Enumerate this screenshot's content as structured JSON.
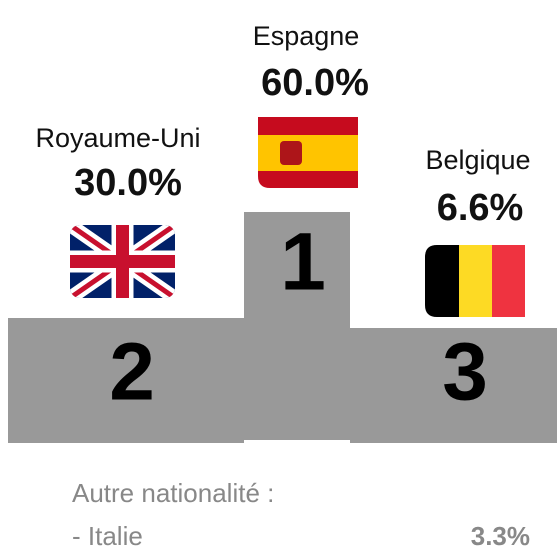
{
  "podium": [
    {
      "rank": "1",
      "country": "Espagne",
      "share": "60.0%"
    },
    {
      "rank": "2",
      "country": "Royaume-Uni",
      "share": "30.0%"
    },
    {
      "rank": "3",
      "country": "Belgique",
      "share": "6.6%"
    }
  ],
  "other": {
    "heading": "Autre nationalité :",
    "items": [
      {
        "country": "- Italie",
        "share": "3.3%"
      }
    ]
  }
}
